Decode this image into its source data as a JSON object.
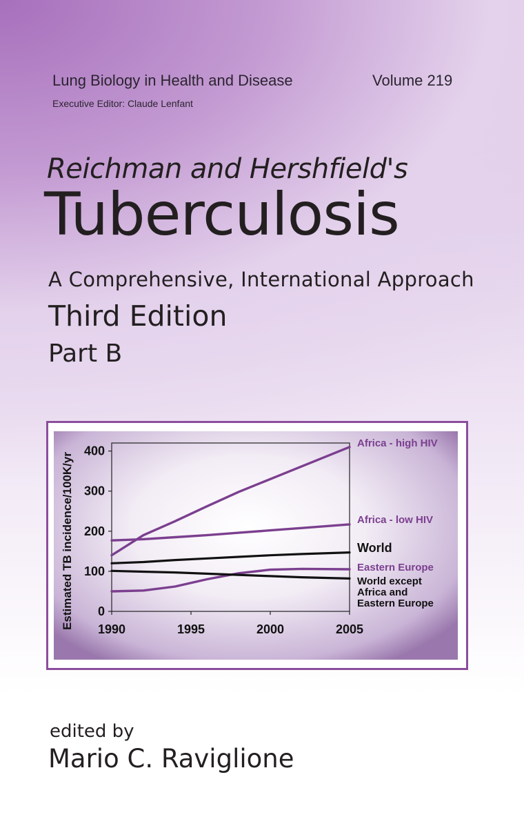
{
  "header": {
    "series_title": "Lung Biology in Health and Disease",
    "volume": "Volume 219",
    "executive_editor": "Executive Editor: Claude Lenfant"
  },
  "book": {
    "pre_title": "Reichman and Hershfield's",
    "title": "Tuberculosis",
    "subtitle": "A Comprehensive, International Approach",
    "edition": "Third Edition",
    "part": "Part B"
  },
  "credits": {
    "edited_by": "edited by",
    "editor": "Mario C. Raviglione"
  },
  "colors": {
    "purple_series": "#7b3f8f",
    "black_series": "#111111",
    "frame": "#8c4d9c"
  },
  "chart_data": {
    "type": "line",
    "ylabel": "Estimated TB incidence/100K/yr",
    "xlabel": "",
    "xlim": [
      1990,
      2005
    ],
    "ylim": [
      0,
      420
    ],
    "x_ticks": [
      "1990",
      "1995",
      "2000",
      "2005"
    ],
    "y_ticks": [
      "0",
      "100",
      "200",
      "300",
      "400"
    ],
    "x": [
      1990,
      1992,
      1994,
      1996,
      1998,
      2000,
      2002,
      2005
    ],
    "series": [
      {
        "name": "Africa - high HIV",
        "color": "purple",
        "values": [
          140,
          190,
          225,
          262,
          298,
          330,
          362,
          410
        ]
      },
      {
        "name": "Africa - low HIV",
        "color": "purple",
        "values": [
          177,
          180,
          185,
          190,
          196,
          202,
          208,
          217
        ]
      },
      {
        "name": "World",
        "color": "black",
        "values": [
          120,
          123,
          128,
          132,
          136,
          140,
          143,
          147
        ]
      },
      {
        "name": "Eastern Europe",
        "color": "purple",
        "values": [
          50,
          52,
          62,
          80,
          95,
          104,
          106,
          105
        ]
      },
      {
        "name": "World except Africa and Eastern Europe",
        "color": "black",
        "values": [
          101,
          99,
          97,
          94,
          91,
          88,
          85,
          82
        ]
      }
    ],
    "label_lines": {
      "series_3": [
        "Eastern Europe"
      ],
      "series_4": [
        "World except",
        "Africa and",
        "Eastern Europe"
      ]
    }
  }
}
